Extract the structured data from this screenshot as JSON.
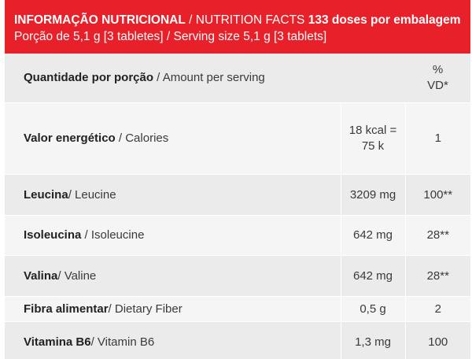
{
  "header": {
    "title_bold": "INFORMAÇÃO NUTRICIONAL",
    "title_rest": " / NUTRITION FACTS ",
    "doses": "133 doses por embalagem",
    "serving": " Porção de 5,1 g [3 tabletes] / Serving size 5,1 g [3 tablets]"
  },
  "table": {
    "head": {
      "pt": "Quantidade por porção",
      "en": " / Amount per serving",
      "vd_line1": "%",
      "vd_line2": "VD*"
    },
    "rows": [
      {
        "pt": "Valor energético",
        "en": " / Calories",
        "value": "18 kcal = 75 k",
        "vd": "1"
      },
      {
        "pt": "Leucina",
        "en": "/ Leucine",
        "value": "3209 mg",
        "vd": "100**"
      },
      {
        "pt": "Isoleucina",
        "en": " / Isoleucine",
        "value": "642 mg",
        "vd": "28**"
      },
      {
        "pt": "Valina",
        "en": "/ Valine",
        "value": "642 mg",
        "vd": "28**"
      },
      {
        "pt": "Fibra alimentar",
        "en": "/ Dietary Fiber",
        "value": "0,5 g",
        "vd": "2"
      },
      {
        "pt": "Vitamina B6",
        "en": "/ Vitamin B6",
        "value": "1,3 mg",
        "vd": "100"
      }
    ]
  }
}
